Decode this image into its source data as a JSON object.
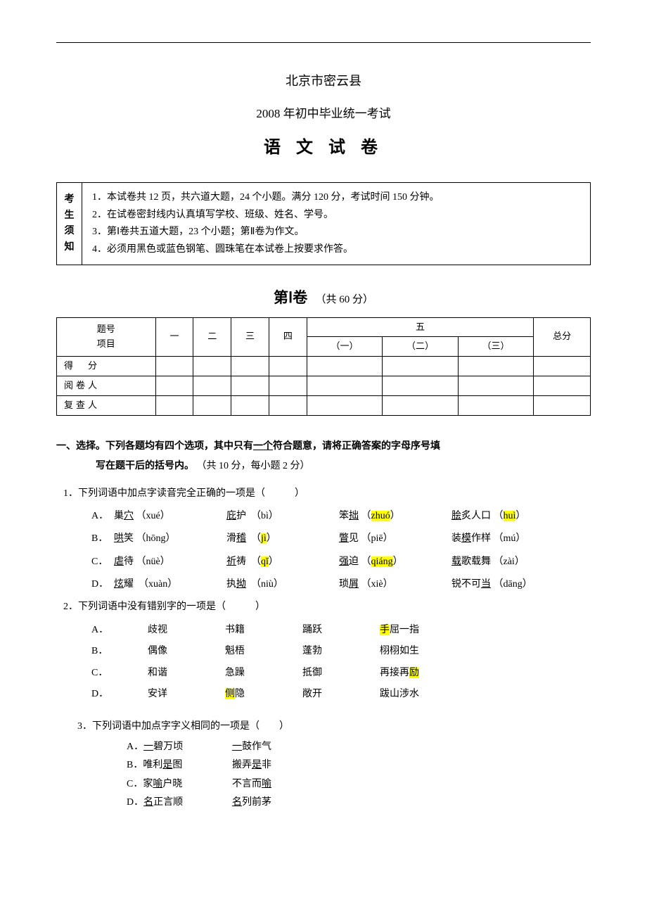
{
  "header": {
    "line1": "北京市密云县",
    "line2": "2008 年初中毕业统一考试",
    "line3": "语 文 试 卷"
  },
  "notice": {
    "label": [
      "考",
      "生",
      "须",
      "知"
    ],
    "items": [
      "1．本试卷共 12 页，共六道大题，24 个小题。满分 120 分，考试时间 150 分钟。",
      "2．在试卷密封线内认真填写学校、班级、姓名、学号。",
      "3．第Ⅰ卷共五道大题，23 个小题；第Ⅱ卷为作文。",
      "4．必须用黑色或蓝色钢笔、圆珠笔在本试卷上按要求作答。"
    ]
  },
  "section1": {
    "title_main": "第Ⅰ卷",
    "title_sub": "（共 60 分）"
  },
  "score_table": {
    "header_left": [
      "题号",
      "项目"
    ],
    "cols": [
      "一",
      "二",
      "三",
      "四"
    ],
    "group_col": "五",
    "group_sub": [
      "（一）",
      "（二）",
      "（三）"
    ],
    "total": "总分",
    "rows": [
      "得　分",
      "阅卷人",
      "复查人"
    ]
  },
  "part1": {
    "heading_a": "一、选择。下列各题均有四个选项，其中只有",
    "heading_underline": "一个",
    "heading_b": "符合题意，请将正确答案的字母序号填",
    "heading_line2": "写在题干后的括号内。",
    "heading_suffix": " （共 10 分，每小题 2 分）"
  },
  "q1": {
    "stem": "1．下列词语中加点字读音完全正确的一项是（　　　）",
    "rows": [
      {
        "label": "A．",
        "c1a": "巢",
        "c1u": "穴",
        "c1p": "（xué）",
        "c2u": "庇",
        "c2a": "护",
        "c2p": "（bì）",
        "c3a": "笨",
        "c3u": "拙",
        "c3p_pre": "（",
        "c3p_hl": "zhuó",
        "c3p_post": "）",
        "c4u": "脍",
        "c4a": "炙人口",
        "c4p_pre": "（",
        "c4p_hl": "huì",
        "c4p_post": "）"
      },
      {
        "label": "B．",
        "c1u": "哄",
        "c1a": "笑",
        "c1p": "（hōng）",
        "c2a": "滑",
        "c2u": "稽",
        "c2p_pre": "（",
        "c2p_hl": "jì",
        "c2p_post": "）",
        "c3u": "瞥",
        "c3a": "见",
        "c3p": "（piē）",
        "c4a": "装",
        "c4u": "模",
        "c4b": "作样",
        "c4p": "（mú）"
      },
      {
        "label": "C．",
        "c1u": "虐",
        "c1a": "待",
        "c1p": "（nüè）",
        "c2u": "祈",
        "c2a": "祷",
        "c2p_pre": "（",
        "c2p_hl": "qǐ",
        "c2p_post": "）",
        "c3u": "强",
        "c3a": "迫",
        "c3p_pre": "（",
        "c3p_hl": "qiáng",
        "c3p_post": "）",
        "c4u": "载",
        "c4a": "歌载舞",
        "c4p": "（zài）"
      },
      {
        "label": "D．",
        "c1u": "炫",
        "c1a": "耀",
        "c1p": "（xuàn）",
        "c2a": "执",
        "c2u": "拗",
        "c2p": "（niù）",
        "c3a": "琐",
        "c3u": "屑",
        "c3p": "（xiè）",
        "c4a": "锐不可",
        "c4u": "当",
        "c4p": "（dāng）"
      }
    ]
  },
  "q2": {
    "stem": "2．下列词语中没有错别字的一项是（　　　）",
    "rows": [
      {
        "label": "A．",
        "c1": "歧视",
        "c2": "书籍",
        "c3": "踊跃",
        "c4_hl": "手",
        "c4_rest": "屈一指"
      },
      {
        "label": "B．",
        "c1": "偶像",
        "c2": "魁梧",
        "c3": "蓬勃",
        "c4": "栩栩如生"
      },
      {
        "label": "C．",
        "c1": "和谐",
        "c2": "急躁",
        "c3": "抵御",
        "c4_pre": "再接再",
        "c4_hl": "励"
      },
      {
        "label": "D．",
        "c1": "安详",
        "c2_hl": "侧",
        "c2_rest": "隐",
        "c3": "敞开",
        "c4": "跋山涉水"
      }
    ]
  },
  "q3": {
    "stem": "3．下列词语中加点字字义相同的一项是（　　）",
    "rows": [
      {
        "label": "A．",
        "c1u": "一",
        "c1a": "碧万顷",
        "c2u": "一",
        "c2a": "鼓作气"
      },
      {
        "label": "B．",
        "c1a": "唯利",
        "c1u": "是",
        "c1b": "图",
        "c2a": "搬弄",
        "c2u": "是",
        "c2b": "非"
      },
      {
        "label": "C．",
        "c1a": "家",
        "c1u": "喻",
        "c1b": "户晓",
        "c2a": "不言而",
        "c2u": "喻"
      },
      {
        "label": "D．",
        "c1u": "名",
        "c1a": "正言顺",
        "c2u": "名",
        "c2a": "列前茅"
      }
    ]
  }
}
